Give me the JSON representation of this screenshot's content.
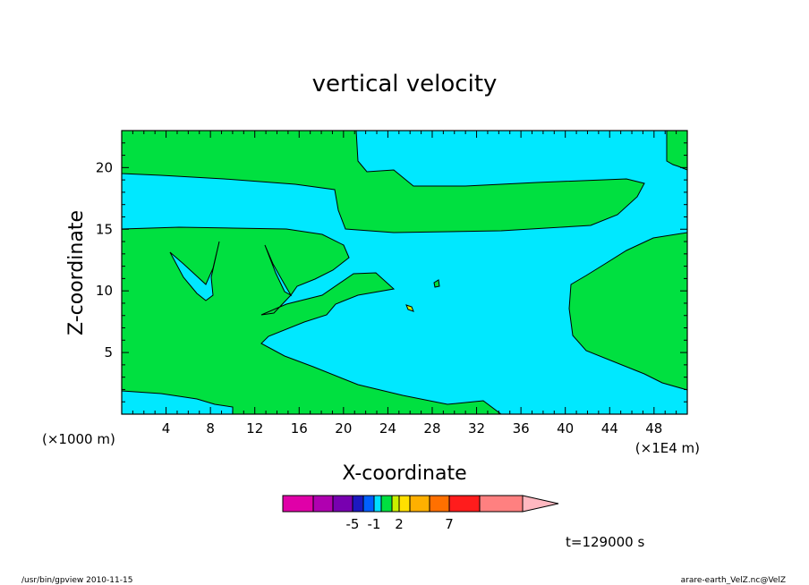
{
  "chart_data": {
    "type": "contour",
    "title": "vertical velocity",
    "xlabel": "X-coordinate",
    "ylabel": "Z-coordinate",
    "x_unit": "(×1E4 m)",
    "y_unit": "(×1000 m)",
    "xlim": [
      0,
      51
    ],
    "ylim": [
      0,
      23
    ],
    "x_ticks": [
      4,
      8,
      12,
      16,
      20,
      24,
      28,
      32,
      36,
      40,
      44,
      48
    ],
    "y_ticks": [
      5,
      10,
      15,
      20
    ],
    "fill_colors": {
      "background_level": "#00e8ff",
      "positive_level": "#00e040"
    },
    "colorbar": {
      "colors": [
        "#e000a8",
        "#b000b0",
        "#7800b0",
        "#1c18c0",
        "#0060ff",
        "#00e0ff",
        "#00e040",
        "#c8f000",
        "#ffe000",
        "#ffb000",
        "#ff7000",
        "#ff1c1c",
        "#ff8080",
        "#ffb8c0"
      ],
      "labels": [
        {
          "text": "-5",
          "after_box": 3
        },
        {
          "text": "-1",
          "after_box": 5
        },
        {
          "text": "2",
          "after_box": 8
        },
        {
          "text": "7",
          "after_box": 11
        }
      ]
    },
    "time_label": "t=129000 s"
  },
  "footer": {
    "left": "/usr/bin/gpview   2010-11-15",
    "right": "arare-earth_VelZ.nc@VelZ"
  }
}
